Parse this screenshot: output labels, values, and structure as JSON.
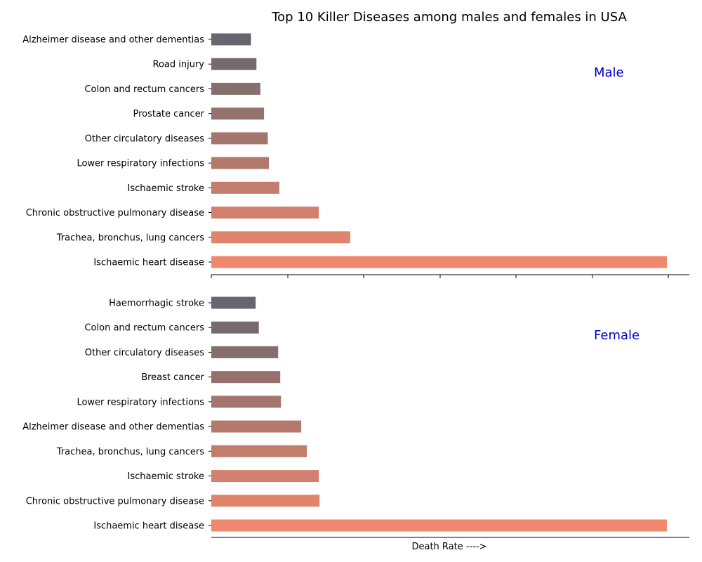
{
  "chart_data": [
    {
      "type": "bar",
      "orientation": "horizontal",
      "title": "Top 10 Killer Diseases among males and females in USA",
      "panel_label": "Male",
      "categories": [
        "Ischaemic heart disease",
        "Trachea, bronchus, lung cancers",
        "Chronic obstructive pulmonary disease",
        "Ischaemic stroke",
        "Lower respiratory infections",
        "Other circulatory diseases",
        "Prostate cancer",
        "Colon and rectum cancers",
        "Road injury",
        "Alzheimer disease and other dementias"
      ],
      "values": [
        300,
        91.5,
        70.8,
        44.8,
        37.9,
        37.2,
        34.7,
        32.3,
        29.7,
        26.1
      ],
      "xlim": [
        0,
        315
      ],
      "xlabel": "",
      "grid": false
    },
    {
      "type": "bar",
      "orientation": "horizontal",
      "panel_label": "Female",
      "categories": [
        "Ischaemic heart disease",
        "Chronic obstructive pulmonary disease",
        "Ischaemic stroke",
        "Trachea, bronchus, lung cancers",
        "Alzheimer disease and other dementias",
        "Lower respiratory infections",
        "Breast cancer",
        "Other circulatory diseases",
        "Colon and rectum cancers",
        "Haemorrhagic stroke"
      ],
      "values": [
        300,
        71.3,
        70.8,
        62.9,
        59.2,
        45.9,
        45.4,
        44.0,
        31.3,
        29.2
      ],
      "xlim": [
        0,
        315
      ],
      "xlabel": "Death Rate ---->",
      "grid": false
    }
  ],
  "colors": {
    "bar_start": "#f0886d",
    "bar_end": "#67666e",
    "panel_label": "#0000cc"
  }
}
